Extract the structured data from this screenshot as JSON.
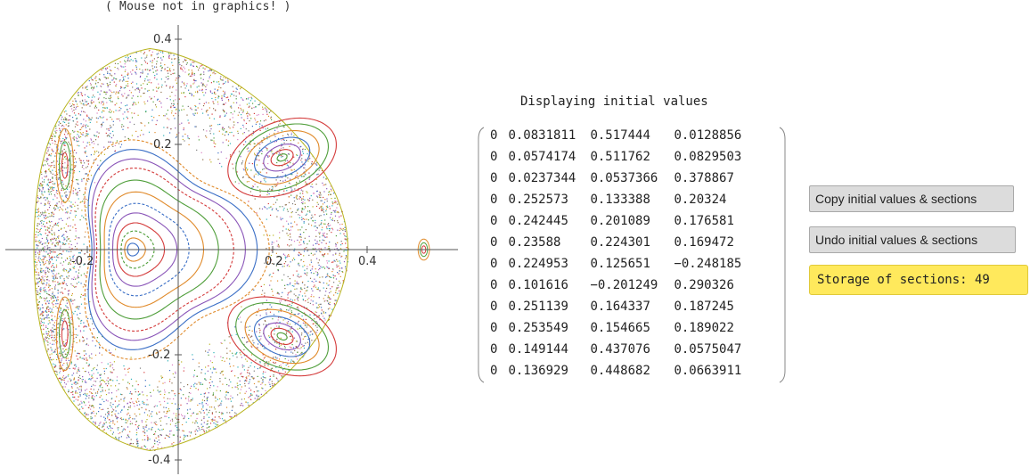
{
  "mouse_status": "( Mouse not in graphics! )",
  "plot": {
    "x_ticks": [
      "-0.2",
      "0.2",
      "0.4"
    ],
    "y_ticks": [
      "0.4",
      "0.2",
      "-0.2",
      "-0.4"
    ],
    "colors": [
      "#3b6fc6",
      "#e08a2a",
      "#4f9e3a",
      "#d43b3b",
      "#8a55b8",
      "#8d6e4a",
      "#d97cc0",
      "#7a7a7a",
      "#b8b41e",
      "#2bb0b8"
    ]
  },
  "matrix": {
    "caption": "Displaying initial values",
    "rows": [
      [
        "0",
        "0.0831811",
        "0.517444",
        "0.0128856"
      ],
      [
        "0",
        "0.0574174",
        "0.511762",
        "0.0829503"
      ],
      [
        "0",
        "0.0237344",
        "0.0537366",
        "0.378867"
      ],
      [
        "0",
        "0.252573",
        "0.133388",
        "0.20324"
      ],
      [
        "0",
        "0.242445",
        "0.201089",
        "0.176581"
      ],
      [
        "0",
        "0.23588",
        "0.224301",
        "0.169472"
      ],
      [
        "0",
        "0.224953",
        "0.125651",
        "−0.248185"
      ],
      [
        "0",
        "0.101616",
        "−0.201249",
        "0.290326"
      ],
      [
        "0",
        "0.251139",
        "0.164337",
        "0.187245"
      ],
      [
        "0",
        "0.253549",
        "0.154665",
        "0.189022"
      ],
      [
        "0",
        "0.149144",
        "0.437076",
        "0.0575047"
      ],
      [
        "0",
        "0.136929",
        "0.448682",
        "0.0663911"
      ]
    ]
  },
  "buttons": {
    "copy_label": "Copy initial values & sections",
    "undo_label": "Undo initial values & sections"
  },
  "storage": {
    "label": "Storage of sections: 49",
    "count": 49
  }
}
